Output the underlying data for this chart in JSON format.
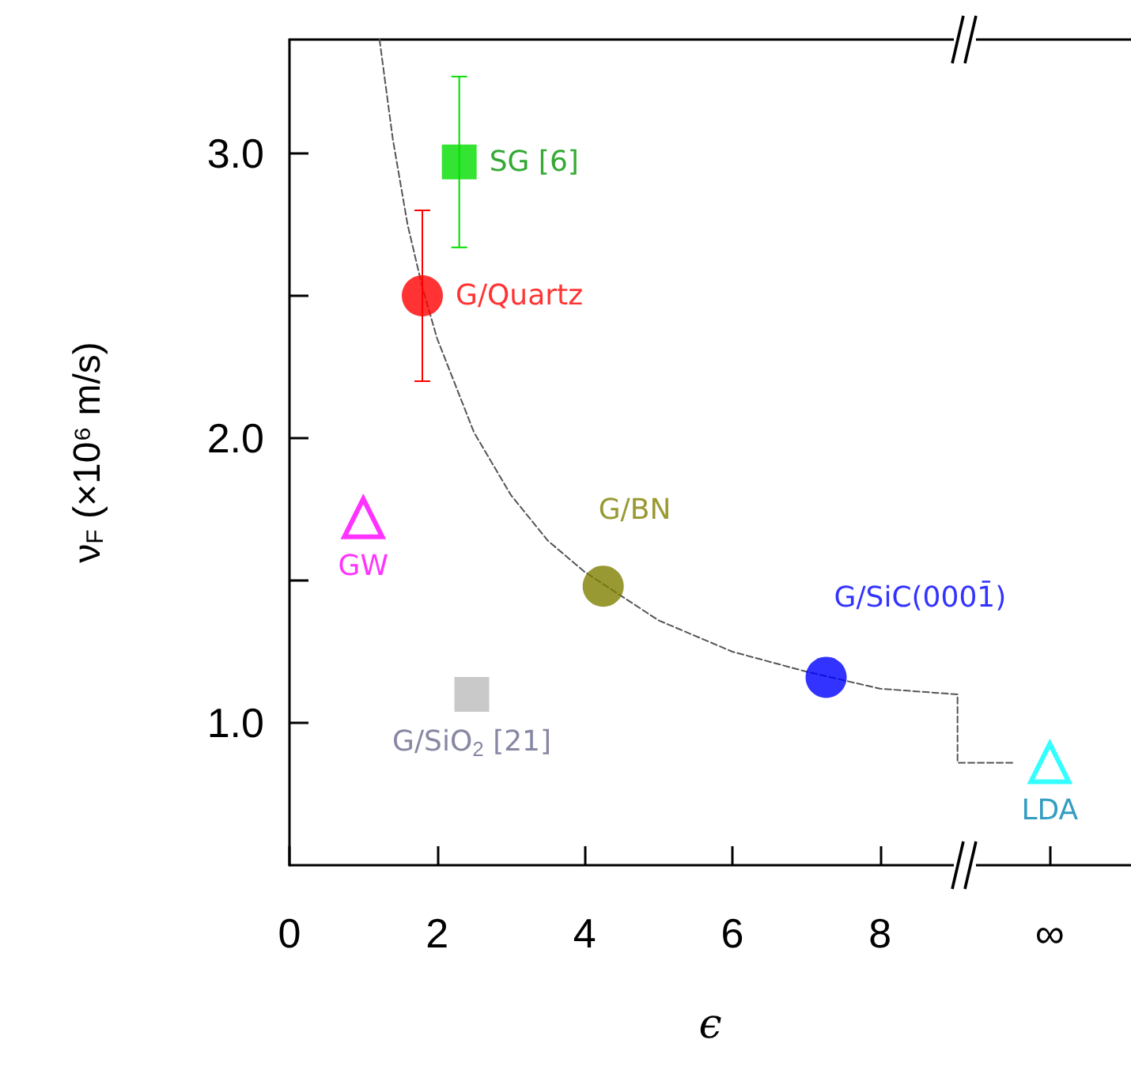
{
  "chart_data": {
    "type": "scatter",
    "xlabel": "ϵ",
    "ylabel": "ν$_{F}$ (×10⁶ m/s)",
    "xlim": [
      0,
      11.4
    ],
    "ylim": [
      0.5,
      3.4
    ],
    "xticks": [
      0,
      2,
      4,
      6,
      8,
      {
        "value": 10.3,
        "label": "∞"
      }
    ],
    "yticks": [
      {
        "value": 1.0,
        "label": "1.0"
      },
      {
        "value": 1.5,
        "label": null
      },
      {
        "value": 2.0,
        "label": "2.0"
      },
      {
        "value": 2.5,
        "label": null
      },
      {
        "value": 3.0,
        "label": "3.0"
      }
    ],
    "grid": false,
    "legend": false,
    "series": [
      {
        "name": "SG [6]",
        "color": "#00dd00",
        "marker": "square",
        "x": [
          2.3
        ],
        "values": [
          2.97
        ],
        "errors": [
          [
            2.67,
            3.27
          ]
        ]
      },
      {
        "name": "G/Quartz",
        "color": "#ff0000",
        "marker": "circle",
        "x": [
          1.8
        ],
        "values": [
          2.5
        ],
        "errors": [
          0.3
        ]
      },
      {
        "name": "GW",
        "color": "#ff00ff",
        "marker": "triangle",
        "x": [
          1.0
        ],
        "values": [
          1.72
        ]
      },
      {
        "name": "G/BN",
        "color": "#808000",
        "marker": "circle",
        "x": [
          4.25
        ],
        "values": [
          1.48
        ]
      },
      {
        "name": "G/SiC(0001̄)",
        "color": "#0000ff",
        "marker": "circle",
        "x": [
          7.27
        ],
        "values": [
          1.16
        ]
      },
      {
        "name": "G/SiO$_{2}$ [21]",
        "color": "#bbbbbb",
        "marker": "square",
        "x": [
          2.47
        ],
        "values": [
          1.1
        ]
      },
      {
        "name": "LDA",
        "color": "#00ffff",
        "marker": "triangle",
        "x": [
          10.3
        ],
        "values": [
          0.86
        ]
      },
      {
        "type": "line",
        "color": "#555555",
        "marker": "none",
        "line_style": "dashed",
        "x": [
          1.22,
          1.4,
          1.6,
          1.8,
          2.0,
          2.5,
          3.0,
          3.5,
          4.0,
          5.0,
          6.0,
          7.0,
          8.0,
          9.05,
          9.05,
          9.8
        ],
        "values": [
          3.4,
          3.05,
          2.75,
          2.53,
          2.35,
          2.02,
          1.8,
          1.64,
          1.53,
          1.36,
          1.25,
          1.18,
          1.12,
          1.1,
          0.86,
          0.86
        ]
      }
    ]
  }
}
